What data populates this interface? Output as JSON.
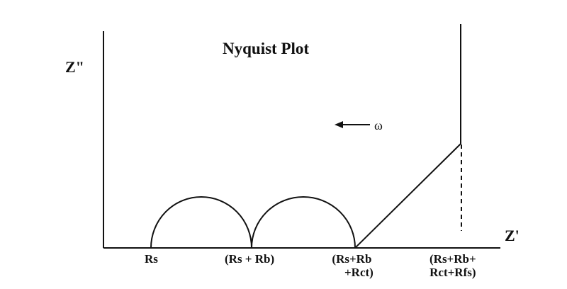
{
  "diagram": {
    "title": "Nyquist Plot",
    "y_axis_label": "Z\"",
    "x_axis_label": "Z'",
    "frequency_symbol": "ω",
    "ticks": [
      {
        "line1": "Rs",
        "line2": ""
      },
      {
        "line1": "(Rs + Rb)",
        "line2": ""
      },
      {
        "line1": "(Rs+Rb",
        "line2": "+Rct)"
      },
      {
        "line1": "(Rs+Rb+",
        "line2": "Rct+Rfs)"
      }
    ],
    "line_color": "#111111"
  }
}
